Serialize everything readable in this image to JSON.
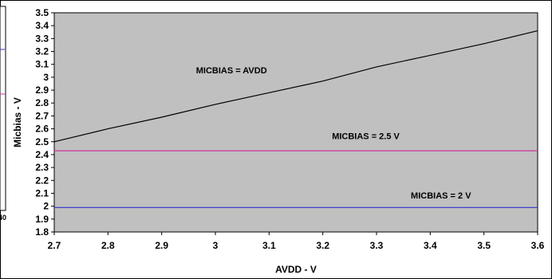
{
  "chart_data": {
    "type": "line",
    "xlabel": "AVDD - V",
    "ylabel": "Micbias - V",
    "xlim": [
      2.7,
      3.6
    ],
    "ylim": [
      1.8,
      3.5
    ],
    "xticks": [
      "2.7",
      "2.8",
      "2.9",
      "3",
      "3.1",
      "3.2",
      "3.3",
      "3.4",
      "3.5",
      "3.6"
    ],
    "yticks": [
      "1.8",
      "1.9",
      "2",
      "2.1",
      "2.2",
      "2.3",
      "2.4",
      "2.5",
      "2.6",
      "2.7",
      "2.8",
      "2.9",
      "3",
      "3.1",
      "3.2",
      "3.3",
      "3.4",
      "3.5"
    ],
    "grid": false,
    "legend": "none",
    "plot_background": "#C0C0C0",
    "series": [
      {
        "name": "MICBIAS = AVDD",
        "color": "#000000",
        "x": [
          2.7,
          2.8,
          2.9,
          3.0,
          3.1,
          3.2,
          3.3,
          3.4,
          3.5,
          3.6
        ],
        "y": [
          2.5,
          2.6,
          2.69,
          2.79,
          2.88,
          2.97,
          3.08,
          3.17,
          3.26,
          3.36
        ]
      },
      {
        "name": "MICBIAS = 2.5 V",
        "color": "#CC3399",
        "x": [
          2.7,
          3.6
        ],
        "y": [
          2.43,
          2.43
        ]
      },
      {
        "name": "MICBIAS = 2 V",
        "color": "#3333CC",
        "x": [
          2.7,
          3.6
        ],
        "y": [
          1.99,
          1.99
        ]
      }
    ],
    "annotations": [
      {
        "text": "MICBIAS = AVDD",
        "x": 3.03,
        "y": 3.03
      },
      {
        "text": "MICBIAS = 2.5 V",
        "x": 3.28,
        "y": 2.52
      },
      {
        "text": "MICBIAS = 2 V",
        "x": 3.42,
        "y": 2.06
      }
    ],
    "edge_fragment": "40"
  }
}
